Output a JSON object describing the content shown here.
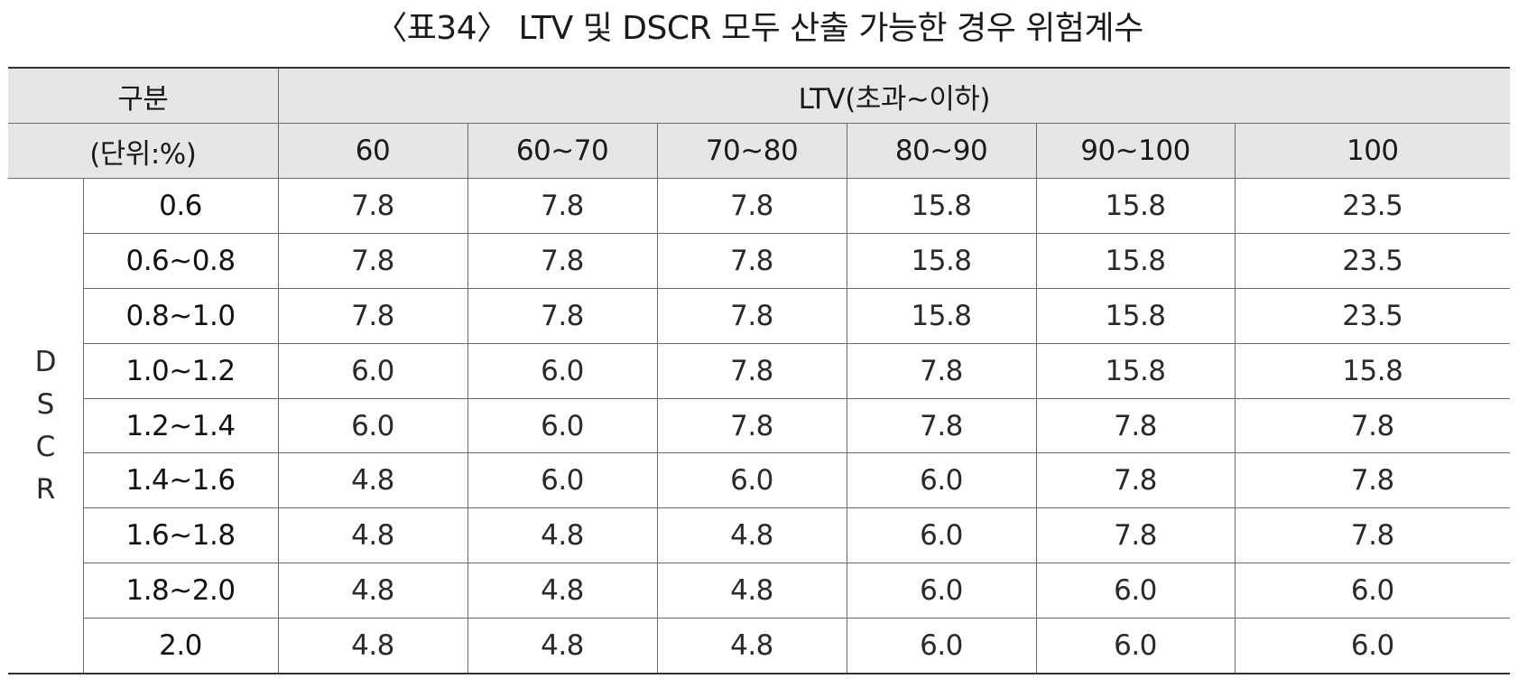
{
  "title": "〈표34〉 LTV 및 DSCR 모두 산출 가능한 경우 위험계수",
  "header": {
    "corner_line1": "구분",
    "corner_line2": "(단위:%)",
    "ltv_group": "LTV(초과~이하)",
    "columns": [
      "60",
      "60~70",
      "70~80",
      "80~90",
      "90~100",
      "100"
    ]
  },
  "row_group_letters": [
    "D",
    "S",
    "C",
    "R"
  ],
  "rows": [
    {
      "label": "0.6",
      "values": [
        "7.8",
        "7.8",
        "7.8",
        "15.8",
        "15.8",
        "23.5"
      ]
    },
    {
      "label": "0.6~0.8",
      "values": [
        "7.8",
        "7.8",
        "7.8",
        "15.8",
        "15.8",
        "23.5"
      ]
    },
    {
      "label": "0.8~1.0",
      "values": [
        "7.8",
        "7.8",
        "7.8",
        "15.8",
        "15.8",
        "23.5"
      ]
    },
    {
      "label": "1.0~1.2",
      "values": [
        "6.0",
        "6.0",
        "7.8",
        "7.8",
        "15.8",
        "15.8"
      ]
    },
    {
      "label": "1.2~1.4",
      "values": [
        "6.0",
        "6.0",
        "7.8",
        "7.8",
        "7.8",
        "7.8"
      ]
    },
    {
      "label": "1.4~1.6",
      "values": [
        "4.8",
        "6.0",
        "6.0",
        "6.0",
        "7.8",
        "7.8"
      ]
    },
    {
      "label": "1.6~1.8",
      "values": [
        "4.8",
        "4.8",
        "4.8",
        "6.0",
        "7.8",
        "7.8"
      ]
    },
    {
      "label": "1.8~2.0",
      "values": [
        "4.8",
        "4.8",
        "4.8",
        "6.0",
        "6.0",
        "6.0"
      ]
    },
    {
      "label": "2.0",
      "values": [
        "4.8",
        "4.8",
        "4.8",
        "6.0",
        "6.0",
        "6.0"
      ]
    }
  ]
}
